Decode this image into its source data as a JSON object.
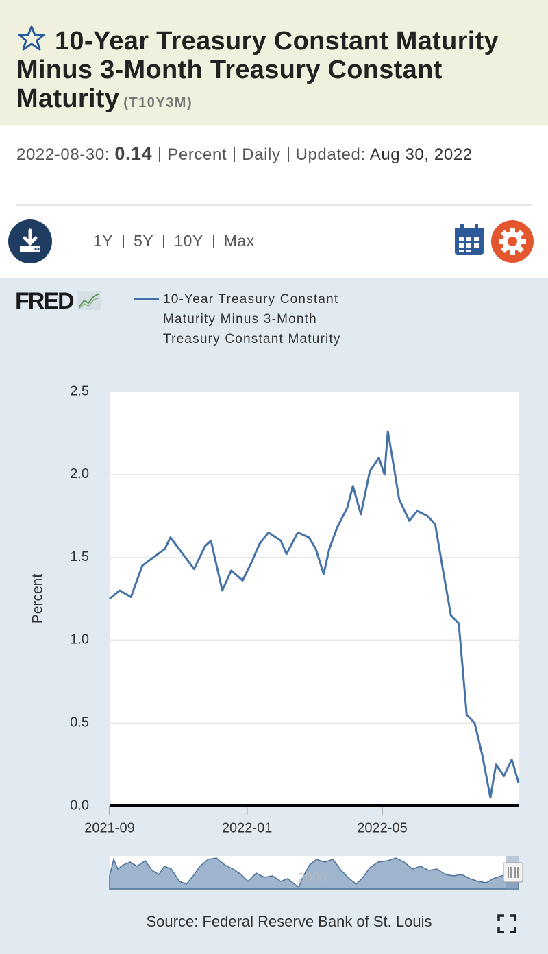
{
  "header": {
    "title": "10-Year Treasury Constant Maturity Minus 3-Month Treasury Constant Maturity",
    "series_id": "(T10Y3M)"
  },
  "summary": {
    "date": "2022-08-30:",
    "value": 0.14,
    "units": "Percent",
    "frequency": "Daily",
    "updated_label": "Updated:",
    "updated": "Aug 30, 2022"
  },
  "toolbar": {
    "ranges": [
      "1Y",
      "5Y",
      "10Y",
      "Max"
    ]
  },
  "logo": "FRED",
  "chart_data": {
    "type": "line",
    "y_label": "Percent",
    "x": [
      "2021-09-01",
      "2021-09-10",
      "2021-09-20",
      "2021-09-30",
      "2021-10-10",
      "2021-10-20",
      "2021-10-25",
      "2021-11-05",
      "2021-11-15",
      "2021-11-25",
      "2021-11-30",
      "2021-12-05",
      "2021-12-10",
      "2021-12-18",
      "2021-12-28",
      "2022-01-05",
      "2022-01-12",
      "2022-01-20",
      "2022-01-31",
      "2022-02-05",
      "2022-02-15",
      "2022-02-25",
      "2022-03-03",
      "2022-03-10",
      "2022-03-15",
      "2022-03-22",
      "2022-03-31",
      "2022-04-05",
      "2022-04-12",
      "2022-04-20",
      "2022-04-28",
      "2022-05-03",
      "2022-05-06",
      "2022-05-10",
      "2022-05-16",
      "2022-05-25",
      "2022-06-01",
      "2022-06-10",
      "2022-06-17",
      "2022-06-24",
      "2022-07-01",
      "2022-07-08",
      "2022-07-15",
      "2022-07-22",
      "2022-07-29",
      "2022-08-05",
      "2022-08-10",
      "2022-08-17",
      "2022-08-24",
      "2022-08-30"
    ],
    "series": [
      {
        "name": "10-Year Treasury Constant Maturity Minus 3-Month Treasury Constant Maturity",
        "color": "#4572a7",
        "values": [
          1.25,
          1.3,
          1.26,
          1.45,
          1.5,
          1.55,
          1.62,
          1.52,
          1.43,
          1.57,
          1.6,
          1.45,
          1.3,
          1.42,
          1.36,
          1.47,
          1.58,
          1.65,
          1.6,
          1.52,
          1.65,
          1.62,
          1.55,
          1.4,
          1.55,
          1.68,
          1.8,
          1.93,
          1.76,
          2.02,
          2.1,
          2.0,
          2.26,
          2.1,
          1.85,
          1.72,
          1.78,
          1.75,
          1.7,
          1.42,
          1.15,
          1.1,
          0.55,
          0.5,
          0.3,
          0.05,
          0.25,
          0.18,
          0.28,
          0.14
        ]
      }
    ],
    "xlim": [
      "2021-09-01",
      "2022-08-30"
    ],
    "xticks": [
      "2021-09",
      "2022-01",
      "2022-05"
    ],
    "ylim": [
      0,
      2.5
    ],
    "yticks": [
      {
        "value": 0,
        "label": "0.0"
      },
      0.5,
      {
        "value": 1,
        "label": "1.0"
      },
      1.5,
      {
        "value": 2,
        "label": "2.0"
      },
      2.5
    ],
    "grid": true
  },
  "navigator": {
    "label": "2000"
  },
  "source": "Source: Federal Reserve Bank of St. Louis"
}
